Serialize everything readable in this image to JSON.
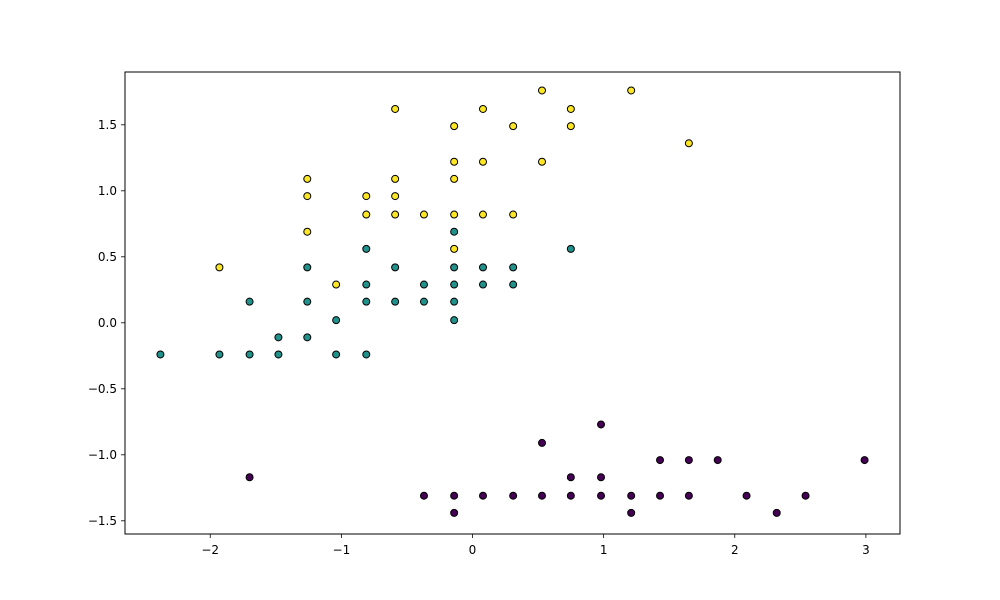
{
  "chart_data": {
    "type": "scatter",
    "title": "",
    "xlabel": "",
    "ylabel": "",
    "xlim": [
      -2.65,
      3.26
    ],
    "ylim": [
      -1.6,
      1.9
    ],
    "grid": false,
    "legend": "none",
    "x_ticks": [
      {
        "value": -2,
        "label": "−2"
      },
      {
        "value": -1,
        "label": "−1"
      },
      {
        "value": 0,
        "label": "0"
      },
      {
        "value": 1,
        "label": "1"
      },
      {
        "value": 2,
        "label": "2"
      },
      {
        "value": 3,
        "label": "3"
      }
    ],
    "y_ticks": [
      {
        "value": -1.5,
        "label": "−1.5"
      },
      {
        "value": -1.0,
        "label": "−1.0"
      },
      {
        "value": -0.5,
        "label": "−0.5"
      },
      {
        "value": 0.0,
        "label": "0.0"
      },
      {
        "value": 0.5,
        "label": "0.5"
      },
      {
        "value": 1.0,
        "label": "1.0"
      },
      {
        "value": 1.5,
        "label": "1.5"
      }
    ],
    "series": [
      {
        "color": "#fde725",
        "points": [
          [
            -1.93,
            0.42
          ],
          [
            -1.26,
            1.09
          ],
          [
            -1.26,
            0.96
          ],
          [
            -1.26,
            0.69
          ],
          [
            -1.04,
            0.29
          ],
          [
            -0.81,
            0.96
          ],
          [
            -0.81,
            0.82
          ],
          [
            -0.59,
            1.62
          ],
          [
            -0.59,
            1.09
          ],
          [
            -0.59,
            0.96
          ],
          [
            -0.59,
            0.82
          ],
          [
            -0.37,
            0.82
          ],
          [
            -0.14,
            1.49
          ],
          [
            -0.14,
            1.22
          ],
          [
            -0.14,
            1.09
          ],
          [
            -0.14,
            0.82
          ],
          [
            -0.14,
            0.56
          ],
          [
            0.08,
            1.62
          ],
          [
            0.08,
            1.22
          ],
          [
            0.08,
            0.82
          ],
          [
            0.31,
            1.49
          ],
          [
            0.31,
            0.82
          ],
          [
            0.53,
            1.76
          ],
          [
            0.53,
            1.22
          ],
          [
            0.75,
            1.62
          ],
          [
            0.75,
            1.49
          ],
          [
            1.21,
            1.76
          ],
          [
            1.65,
            1.36
          ]
        ]
      },
      {
        "color": "#21918c",
        "points": [
          [
            -2.38,
            -0.24
          ],
          [
            -1.93,
            -0.24
          ],
          [
            -1.7,
            0.16
          ],
          [
            -1.7,
            -0.24
          ],
          [
            -1.48,
            -0.11
          ],
          [
            -1.48,
            -0.24
          ],
          [
            -1.26,
            0.42
          ],
          [
            -1.26,
            0.16
          ],
          [
            -1.26,
            -0.11
          ],
          [
            -1.04,
            0.02
          ],
          [
            -1.04,
            -0.24
          ],
          [
            -0.81,
            0.56
          ],
          [
            -0.81,
            0.29
          ],
          [
            -0.81,
            0.16
          ],
          [
            -0.81,
            -0.24
          ],
          [
            -0.59,
            0.42
          ],
          [
            -0.59,
            0.16
          ],
          [
            -0.37,
            0.29
          ],
          [
            -0.37,
            0.16
          ],
          [
            -0.14,
            0.69
          ],
          [
            -0.14,
            0.42
          ],
          [
            -0.14,
            0.29
          ],
          [
            -0.14,
            0.16
          ],
          [
            -0.14,
            0.02
          ],
          [
            0.08,
            0.42
          ],
          [
            0.08,
            0.29
          ],
          [
            0.31,
            0.42
          ],
          [
            0.31,
            0.29
          ],
          [
            0.75,
            0.56
          ]
        ]
      },
      {
        "color": "#440154",
        "points": [
          [
            -1.7,
            -1.17
          ],
          [
            -0.37,
            -1.31
          ],
          [
            -0.14,
            -1.31
          ],
          [
            -0.14,
            -1.44
          ],
          [
            0.08,
            -1.31
          ],
          [
            0.31,
            -1.31
          ],
          [
            0.53,
            -0.91
          ],
          [
            0.53,
            -1.31
          ],
          [
            0.75,
            -1.17
          ],
          [
            0.75,
            -1.31
          ],
          [
            0.98,
            -0.77
          ],
          [
            0.98,
            -1.17
          ],
          [
            0.98,
            -1.31
          ],
          [
            1.21,
            -1.31
          ],
          [
            1.21,
            -1.44
          ],
          [
            1.43,
            -1.04
          ],
          [
            1.43,
            -1.31
          ],
          [
            1.65,
            -1.04
          ],
          [
            1.65,
            -1.31
          ],
          [
            1.87,
            -1.04
          ],
          [
            2.09,
            -1.31
          ],
          [
            2.32,
            -1.44
          ],
          [
            2.54,
            -1.31
          ],
          [
            2.99,
            -1.04
          ]
        ]
      }
    ]
  }
}
